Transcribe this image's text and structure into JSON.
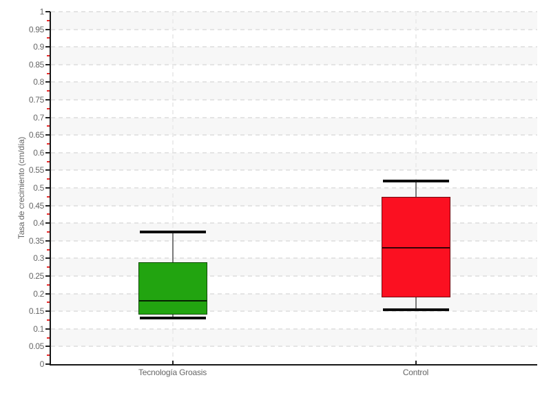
{
  "chart_data": {
    "type": "boxplot",
    "title": "",
    "xlabel": "",
    "ylabel": "Tasa de crecimiento (cm/día)",
    "ylim": [
      0,
      1
    ],
    "ytick_step": 0.05,
    "yticks": [
      "0",
      "0.05",
      "0.1",
      "0.15",
      "0.2",
      "0.25",
      "0.3",
      "0.35",
      "0.4",
      "0.45",
      "0.5",
      "0.55",
      "0.6",
      "0.65",
      "0.7",
      "0.75",
      "0.8",
      "0.85",
      "0.9",
      "0.95",
      "1"
    ],
    "categories": [
      "Tecnología Groasis",
      "Control"
    ],
    "series": [
      {
        "name": "Tecnología Groasis",
        "min": 0.13,
        "q1": 0.14,
        "median": 0.18,
        "q3": 0.29,
        "max": 0.375,
        "fill_color": "#22A410"
      },
      {
        "name": "Control",
        "min": 0.155,
        "q1": 0.19,
        "median": 0.33,
        "q3": 0.475,
        "max": 0.52,
        "fill_color": "#FB1021"
      }
    ],
    "legend": "none",
    "grid": "dashed horizontal every 0.05; dashed vertical at each category",
    "band_color": "#F7F7F7",
    "minor_tick_color": "#E62828",
    "axis_color": "#151515",
    "whisker_cap_color": "#0D0D0D",
    "whisker_stem_color": "#7A7A7A"
  }
}
